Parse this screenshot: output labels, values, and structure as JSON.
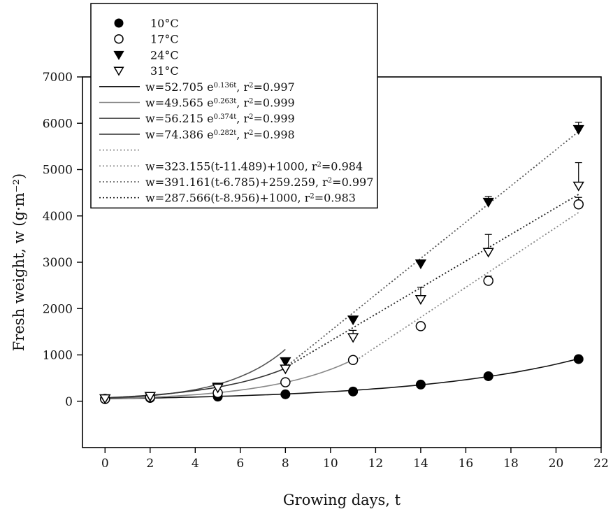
{
  "chart_data": {
    "type": "scatter",
    "xlabel": "Growing days, t",
    "ylabel": "Fresh weight, w (g·m⁻²)",
    "xlim": [
      -1,
      22
    ],
    "ylim": [
      -1000,
      7000
    ],
    "xticks": [
      0,
      2,
      4,
      6,
      8,
      10,
      12,
      14,
      16,
      18,
      20,
      22
    ],
    "yticks": [
      0,
      1000,
      2000,
      3000,
      4000,
      5000,
      6000,
      7000
    ],
    "legend_position": "top-left",
    "series": [
      {
        "name": "10°C",
        "marker": "filled-circle",
        "color": "#000000",
        "x": [
          0,
          2,
          5,
          8,
          11,
          14,
          17,
          21
        ],
        "y": [
          50,
          70,
          100,
          150,
          210,
          360,
          540,
          910
        ],
        "err": [
          20,
          15,
          20,
          20,
          25,
          30,
          40,
          40
        ]
      },
      {
        "name": "17°C",
        "marker": "open-circle",
        "color": "#000000",
        "x": [
          0,
          2,
          5,
          8,
          11,
          14,
          17,
          21
        ],
        "y": [
          50,
          90,
          180,
          410,
          890,
          1620,
          2600,
          4250
        ],
        "err": [
          20,
          20,
          30,
          40,
          50,
          60,
          100,
          150
        ]
      },
      {
        "name": "24°C",
        "marker": "filled-triangle-down",
        "color": "#000000",
        "x": [
          0,
          2,
          5,
          8,
          11,
          14,
          17,
          21
        ],
        "y": [
          60,
          110,
          310,
          860,
          1760,
          2970,
          4300,
          5870
        ],
        "err": [
          20,
          20,
          40,
          60,
          60,
          60,
          120,
          150
        ]
      },
      {
        "name": "31°C",
        "marker": "open-triangle-down",
        "color": "#000000",
        "x": [
          0,
          2,
          5,
          8,
          11,
          14,
          17,
          21
        ],
        "y": [
          60,
          110,
          290,
          700,
          1380,
          2200,
          3220,
          4650
        ],
        "err": [
          20,
          20,
          50,
          80,
          150,
          260,
          380,
          500
        ]
      }
    ],
    "fits": [
      {
        "kind": "exp",
        "color": "#111111",
        "style": "solid",
        "a": 52.705,
        "k": 0.136,
        "xmin": 0,
        "xmax": 21,
        "label": {
          "main": "w=52.705 e",
          "sup": "0.136t",
          "tail": ", r",
          "tail_sup": "2",
          "end": "=0.997"
        }
      },
      {
        "kind": "exp",
        "color": "#888888",
        "style": "solid",
        "a": 49.565,
        "k": 0.263,
        "xmin": 0,
        "xmax": 11,
        "label": {
          "main": "w=49.565 e",
          "sup": "0.263t",
          "tail": ", r",
          "tail_sup": "2",
          "end": "=0.999"
        }
      },
      {
        "kind": "exp",
        "color": "#555555",
        "style": "solid",
        "a": 56.215,
        "k": 0.374,
        "xmin": 0,
        "xmax": 8,
        "label": {
          "main": "w=56.215 e",
          "sup": "0.374t",
          "tail": ", r",
          "tail_sup": "2",
          "end": "=0.999"
        }
      },
      {
        "kind": "exp",
        "color": "#333333",
        "style": "solid",
        "a": 74.386,
        "k": 0.282,
        "xmin": 0,
        "xmax": 8,
        "label": {
          "main": "w=74.386 e",
          "sup": "0.282t",
          "tail": ", r",
          "tail_sup": "2",
          "end": "=0.998"
        }
      },
      {
        "kind": "linear",
        "color": "#888888",
        "style": "dotted",
        "slope": 323.155,
        "x0": 11.489,
        "b": 1000,
        "xmin": 11,
        "xmax": 21,
        "label": {
          "main": "",
          "sup": "",
          "tail": "",
          "tail_sup": "",
          "end": ""
        }
      },
      {
        "kind": "linear",
        "color": "#888888",
        "style": "dotted",
        "slope": 323.155,
        "x0": 11.489,
        "b": 1000,
        "xmin": 11,
        "xmax": 21,
        "label": {
          "main": "w=323.155(t-11.489)+1000, r",
          "sup": "",
          "tail": "",
          "tail_sup": "2",
          "end": "=0.984"
        }
      },
      {
        "kind": "linear",
        "color": "#555555",
        "style": "dotted",
        "slope": 391.161,
        "x0": 6.785,
        "b": 259.259,
        "xmin": 8,
        "xmax": 21,
        "label": {
          "main": "w=391.161(t-6.785)+259.259, r",
          "sup": "",
          "tail": "",
          "tail_sup": "2",
          "end": "=0.997"
        }
      },
      {
        "kind": "linear",
        "color": "#222222",
        "style": "dotted",
        "slope": 287.566,
        "x0": 8.956,
        "b": 1000,
        "xmin": 8,
        "xmax": 21,
        "label": {
          "main": "w=287.566(t-8.956)+1000, r",
          "sup": "",
          "tail": "",
          "tail_sup": "2",
          "end": "=0.983"
        }
      }
    ]
  }
}
